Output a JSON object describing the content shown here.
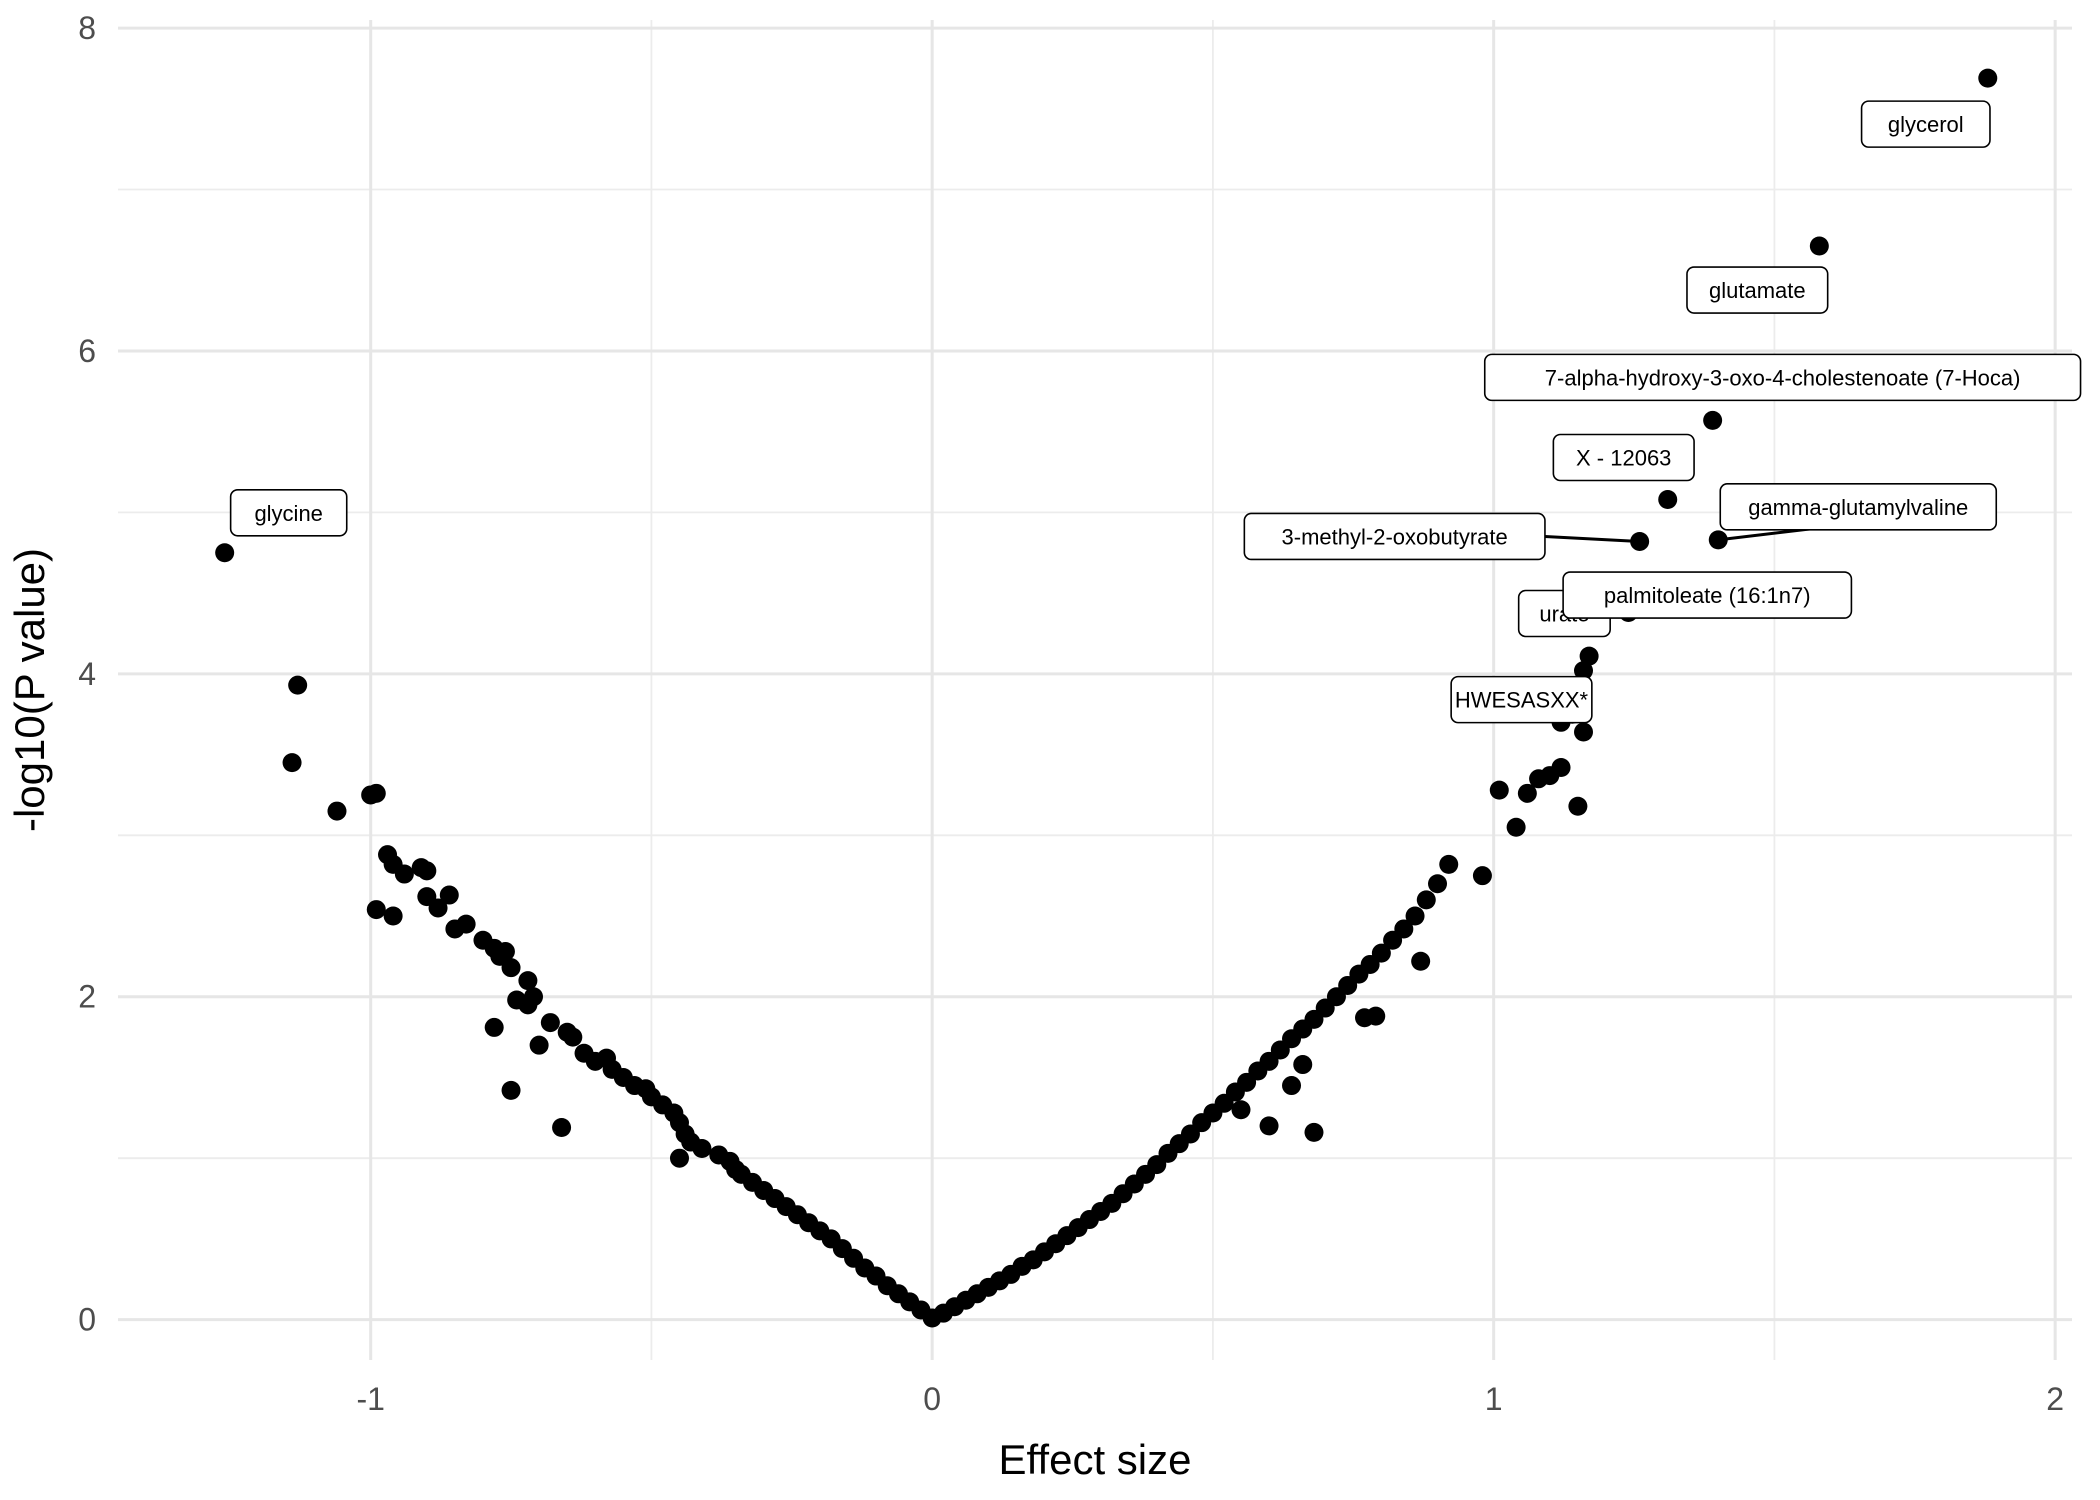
{
  "chart_data": {
    "type": "scatter",
    "title": "",
    "xlabel": "Effect size",
    "ylabel": "-log10(P value)",
    "xlim": [
      -1.45,
      2.03
    ],
    "ylim": [
      -0.25,
      8.05
    ],
    "x_ticks": [
      -1,
      0,
      1,
      2
    ],
    "x_tick_labels": [
      "-1",
      "0",
      "1",
      "2"
    ],
    "y_ticks": [
      0,
      2,
      4,
      6,
      8
    ],
    "y_tick_labels": [
      "0",
      "2",
      "4",
      "6",
      "8"
    ],
    "grid": true,
    "legend": "none",
    "point_color": "#000000",
    "points": [
      {
        "x": -1.26,
        "y": 4.75
      },
      {
        "x": -1.13,
        "y": 3.93
      },
      {
        "x": -1.14,
        "y": 3.45
      },
      {
        "x": -1.06,
        "y": 3.15
      },
      {
        "x": -1.0,
        "y": 3.25
      },
      {
        "x": -0.99,
        "y": 3.26
      },
      {
        "x": -0.97,
        "y": 2.88
      },
      {
        "x": -0.96,
        "y": 2.82
      },
      {
        "x": -0.94,
        "y": 2.76
      },
      {
        "x": -0.91,
        "y": 2.8
      },
      {
        "x": -0.9,
        "y": 2.78
      },
      {
        "x": -0.9,
        "y": 2.62
      },
      {
        "x": -0.88,
        "y": 2.55
      },
      {
        "x": -0.86,
        "y": 2.63
      },
      {
        "x": -0.85,
        "y": 2.42
      },
      {
        "x": -0.83,
        "y": 2.45
      },
      {
        "x": -0.99,
        "y": 2.54
      },
      {
        "x": -0.96,
        "y": 2.5
      },
      {
        "x": -0.8,
        "y": 2.35
      },
      {
        "x": -0.78,
        "y": 2.3
      },
      {
        "x": -0.77,
        "y": 2.25
      },
      {
        "x": -0.76,
        "y": 2.28
      },
      {
        "x": -0.75,
        "y": 2.18
      },
      {
        "x": -0.72,
        "y": 2.1
      },
      {
        "x": -0.71,
        "y": 2.0
      },
      {
        "x": -0.74,
        "y": 1.98
      },
      {
        "x": -0.78,
        "y": 1.81
      },
      {
        "x": -0.68,
        "y": 1.84
      },
      {
        "x": -0.65,
        "y": 1.78
      },
      {
        "x": -0.64,
        "y": 1.75
      },
      {
        "x": -0.62,
        "y": 1.65
      },
      {
        "x": -0.6,
        "y": 1.6
      },
      {
        "x": -0.58,
        "y": 1.62
      },
      {
        "x": -0.57,
        "y": 1.55
      },
      {
        "x": -0.55,
        "y": 1.5
      },
      {
        "x": -0.53,
        "y": 1.45
      },
      {
        "x": -0.51,
        "y": 1.43
      },
      {
        "x": -0.5,
        "y": 1.38
      },
      {
        "x": -0.48,
        "y": 1.33
      },
      {
        "x": -0.46,
        "y": 1.28
      },
      {
        "x": -0.45,
        "y": 1.22
      },
      {
        "x": -0.44,
        "y": 1.15
      },
      {
        "x": -0.43,
        "y": 1.1
      },
      {
        "x": -0.41,
        "y": 1.06
      },
      {
        "x": -0.38,
        "y": 1.02
      },
      {
        "x": -0.36,
        "y": 0.98
      },
      {
        "x": -0.35,
        "y": 0.93
      },
      {
        "x": -0.34,
        "y": 0.9
      },
      {
        "x": -0.32,
        "y": 0.85
      },
      {
        "x": -0.3,
        "y": 0.8
      },
      {
        "x": -0.28,
        "y": 0.75
      },
      {
        "x": -0.26,
        "y": 0.7
      },
      {
        "x": -0.24,
        "y": 0.65
      },
      {
        "x": -0.22,
        "y": 0.6
      },
      {
        "x": -0.2,
        "y": 0.55
      },
      {
        "x": -0.18,
        "y": 0.5
      },
      {
        "x": -0.16,
        "y": 0.44
      },
      {
        "x": -0.14,
        "y": 0.38
      },
      {
        "x": -0.12,
        "y": 0.32
      },
      {
        "x": -0.1,
        "y": 0.27
      },
      {
        "x": -0.08,
        "y": 0.21
      },
      {
        "x": -0.06,
        "y": 0.16
      },
      {
        "x": -0.04,
        "y": 0.11
      },
      {
        "x": -0.02,
        "y": 0.06
      },
      {
        "x": -0.45,
        "y": 1.0
      },
      {
        "x": -0.66,
        "y": 1.19
      },
      {
        "x": -0.75,
        "y": 1.42
      },
      {
        "x": -0.7,
        "y": 1.7
      },
      {
        "x": -0.72,
        "y": 1.95
      },
      {
        "x": 0.0,
        "y": 0.01
      },
      {
        "x": 0.02,
        "y": 0.04
      },
      {
        "x": 0.04,
        "y": 0.08
      },
      {
        "x": 0.06,
        "y": 0.12
      },
      {
        "x": 0.08,
        "y": 0.16
      },
      {
        "x": 0.1,
        "y": 0.2
      },
      {
        "x": 0.12,
        "y": 0.24
      },
      {
        "x": 0.14,
        "y": 0.28
      },
      {
        "x": 0.16,
        "y": 0.33
      },
      {
        "x": 0.18,
        "y": 0.37
      },
      {
        "x": 0.2,
        "y": 0.42
      },
      {
        "x": 0.22,
        "y": 0.47
      },
      {
        "x": 0.24,
        "y": 0.52
      },
      {
        "x": 0.26,
        "y": 0.57
      },
      {
        "x": 0.28,
        "y": 0.62
      },
      {
        "x": 0.3,
        "y": 0.67
      },
      {
        "x": 0.32,
        "y": 0.72
      },
      {
        "x": 0.34,
        "y": 0.78
      },
      {
        "x": 0.36,
        "y": 0.84
      },
      {
        "x": 0.38,
        "y": 0.9
      },
      {
        "x": 0.4,
        "y": 0.96
      },
      {
        "x": 0.42,
        "y": 1.03
      },
      {
        "x": 0.44,
        "y": 1.09
      },
      {
        "x": 0.46,
        "y": 1.15
      },
      {
        "x": 0.48,
        "y": 1.22
      },
      {
        "x": 0.5,
        "y": 1.28
      },
      {
        "x": 0.52,
        "y": 1.34
      },
      {
        "x": 0.54,
        "y": 1.41
      },
      {
        "x": 0.56,
        "y": 1.47
      },
      {
        "x": 0.58,
        "y": 1.54
      },
      {
        "x": 0.6,
        "y": 1.6
      },
      {
        "x": 0.62,
        "y": 1.67
      },
      {
        "x": 0.64,
        "y": 1.74
      },
      {
        "x": 0.66,
        "y": 1.8
      },
      {
        "x": 0.68,
        "y": 1.86
      },
      {
        "x": 0.7,
        "y": 1.93
      },
      {
        "x": 0.72,
        "y": 2.0
      },
      {
        "x": 0.74,
        "y": 2.07
      },
      {
        "x": 0.76,
        "y": 2.14
      },
      {
        "x": 0.78,
        "y": 2.2
      },
      {
        "x": 0.8,
        "y": 2.27
      },
      {
        "x": 0.82,
        "y": 2.35
      },
      {
        "x": 0.84,
        "y": 2.42
      },
      {
        "x": 0.86,
        "y": 2.5
      },
      {
        "x": 0.88,
        "y": 2.6
      },
      {
        "x": 0.9,
        "y": 2.7
      },
      {
        "x": 0.92,
        "y": 2.82
      },
      {
        "x": 0.98,
        "y": 2.75
      },
      {
        "x": 0.87,
        "y": 2.22
      },
      {
        "x": 0.79,
        "y": 1.88
      },
      {
        "x": 0.77,
        "y": 1.87
      },
      {
        "x": 0.66,
        "y": 1.58
      },
      {
        "x": 0.64,
        "y": 1.45
      },
      {
        "x": 0.68,
        "y": 1.16
      },
      {
        "x": 0.6,
        "y": 1.2
      },
      {
        "x": 0.55,
        "y": 1.3
      },
      {
        "x": 1.01,
        "y": 3.28
      },
      {
        "x": 1.04,
        "y": 3.05
      },
      {
        "x": 1.06,
        "y": 3.26
      },
      {
        "x": 1.08,
        "y": 3.35
      },
      {
        "x": 1.1,
        "y": 3.37
      },
      {
        "x": 1.12,
        "y": 3.42
      },
      {
        "x": 1.15,
        "y": 3.18
      },
      {
        "x": 1.12,
        "y": 3.7
      },
      {
        "x": 1.14,
        "y": 3.75
      },
      {
        "x": 1.16,
        "y": 3.64
      },
      {
        "x": 1.16,
        "y": 4.02
      },
      {
        "x": 1.17,
        "y": 4.11
      },
      {
        "x": 1.24,
        "y": 4.38
      },
      {
        "x": 1.27,
        "y": 4.55
      },
      {
        "x": 1.26,
        "y": 4.82
      },
      {
        "x": 1.31,
        "y": 5.08
      },
      {
        "x": 1.4,
        "y": 4.83
      },
      {
        "x": 1.39,
        "y": 5.57
      },
      {
        "x": 1.58,
        "y": 6.65
      },
      {
        "x": 1.88,
        "y": 7.69
      }
    ],
    "annotations": [
      {
        "text": "glycerol",
        "x": 1.88,
        "y": 7.69
      },
      {
        "text": "glutamate",
        "x": 1.58,
        "y": 6.65
      },
      {
        "text": "7-alpha-hydroxy-3-oxo-4-cholestenoate (7-Hoca)",
        "x": 1.39,
        "y": 5.57
      },
      {
        "text": "X - 12063",
        "x": 1.31,
        "y": 5.08
      },
      {
        "text": "gamma-glutamylvaline",
        "x": 1.4,
        "y": 4.83
      },
      {
        "text": "3-methyl-2-oxobutyrate",
        "x": 1.26,
        "y": 4.82
      },
      {
        "text": "urate",
        "x": 1.24,
        "y": 4.38
      },
      {
        "text": "palmitoleate (16:1n7)",
        "x": 1.27,
        "y": 4.55
      },
      {
        "text": "HWESASXX*",
        "x": 1.16,
        "y": 4.02
      },
      {
        "text": "glycine",
        "x": -1.26,
        "y": 4.75
      }
    ]
  }
}
